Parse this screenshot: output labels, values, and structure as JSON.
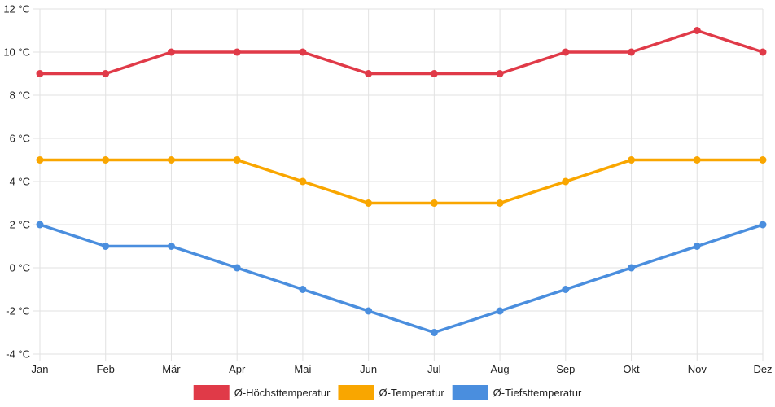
{
  "chart_data": {
    "type": "line",
    "title": "",
    "xlabel": "",
    "ylabel": "",
    "categories": [
      "Jan",
      "Feb",
      "Mär",
      "Apr",
      "Mai",
      "Jun",
      "Jul",
      "Aug",
      "Sep",
      "Okt",
      "Nov",
      "Dez"
    ],
    "ylim": [
      -4,
      12
    ],
    "yticks": [
      12,
      10,
      8,
      6,
      4,
      2,
      0,
      -2,
      -4
    ],
    "ytick_labels": [
      "12 °C",
      "10 °C",
      "8 °C",
      "6 °C",
      "4 °C",
      "2 °C",
      "0 °C",
      "-2 °C",
      "-4 °C"
    ],
    "grid": true,
    "legend_position": "bottom",
    "series": [
      {
        "name": "Ø-Höchsttemperatur",
        "color": "#e03a48",
        "values": [
          9,
          9,
          10,
          10,
          10,
          9,
          9,
          9,
          10,
          10,
          11,
          10
        ]
      },
      {
        "name": "Ø-Temperatur",
        "color": "#f9a600",
        "values": [
          5,
          5,
          5,
          5,
          4,
          3,
          3,
          3,
          4,
          5,
          5,
          5
        ]
      },
      {
        "name": "Ø-Tiefsttemperatur",
        "color": "#4a8ede",
        "values": [
          2,
          1,
          1,
          0,
          -1,
          -2,
          -3,
          -2,
          -1,
          0,
          1,
          2
        ]
      }
    ]
  }
}
